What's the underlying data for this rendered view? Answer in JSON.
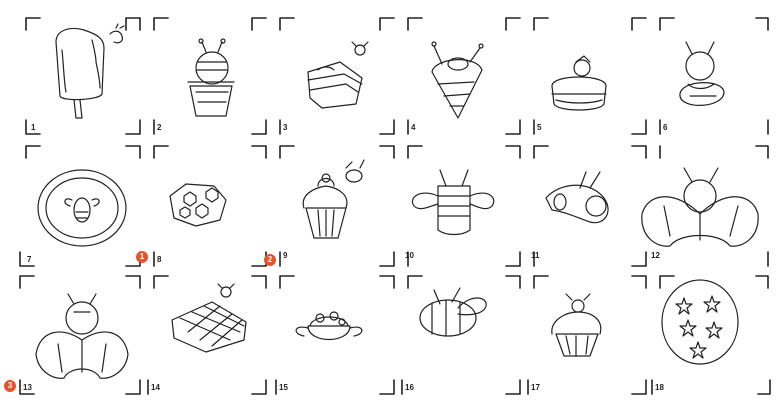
{
  "sheet": {
    "panels": [
      {
        "number": "1",
        "subject": "popsicle with bite and small bee"
      },
      {
        "number": "2",
        "subject": "bee in a bucket"
      },
      {
        "number": "3",
        "subject": "slice of layered cake with bee"
      },
      {
        "number": "4",
        "subject": "ice cream cone with bee"
      },
      {
        "number": "5",
        "subject": "macaron with berry on top"
      },
      {
        "number": "6",
        "subject": "bee hugging a bun"
      },
      {
        "number": "7",
        "subject": "round pie with bee in center"
      },
      {
        "number": "8",
        "subject": "honeycomb cookie with bee"
      },
      {
        "number": "9",
        "subject": "cupcake with flying bee"
      },
      {
        "number": "10",
        "subject": "striped bee"
      },
      {
        "number": "11",
        "subject": "cream roll with bee"
      },
      {
        "number": "12",
        "subject": "bee on croissant"
      },
      {
        "number": "13",
        "subject": "bee head on croissant"
      },
      {
        "number": "14",
        "subject": "lattice pie slice with bee"
      },
      {
        "number": "15",
        "subject": "dessert bowl with wings"
      },
      {
        "number": "16",
        "subject": "bee with long wings"
      },
      {
        "number": "17",
        "subject": "cupcake with bee on top"
      },
      {
        "number": "18",
        "subject": "cookie with star pattern"
      }
    ],
    "badges": [
      {
        "label": "1"
      },
      {
        "label": "2"
      },
      {
        "label": "3"
      }
    ],
    "colors": {
      "ink": "#222222",
      "badge": "#e3542a"
    }
  }
}
